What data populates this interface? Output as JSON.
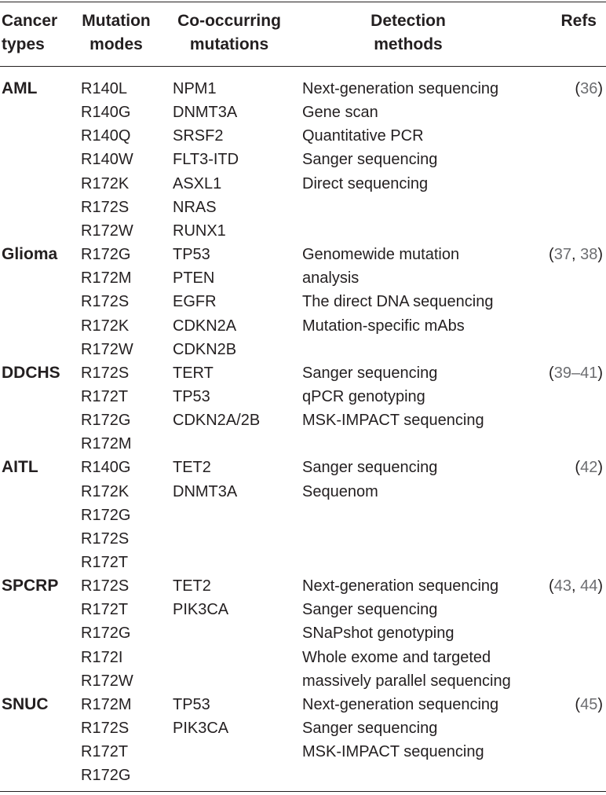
{
  "headers": {
    "cancer_types": [
      "Cancer",
      "types"
    ],
    "mutation_modes": [
      "Mutation",
      "modes"
    ],
    "co_occurring": [
      "Co-occurring",
      "mutations"
    ],
    "detection": [
      "Detection",
      "methods"
    ],
    "refs": "Refs"
  },
  "groups": [
    {
      "type": "AML",
      "modes": [
        "R140L",
        "R140G",
        "R140Q",
        "R140W",
        "R172K",
        "R172S",
        "R172W"
      ],
      "mutations": [
        "NPM1",
        "DNMT3A",
        "SRSF2",
        "FLT3-ITD",
        "ASXL1",
        "NRAS",
        "RUNX1"
      ],
      "methods": [
        "Next-generation sequencing",
        "Gene scan",
        "Quantitative PCR",
        "Sanger sequencing",
        "Direct sequencing"
      ],
      "refs": {
        "open": "(",
        "nums": [
          "36"
        ],
        "seps": [],
        "close": ")"
      }
    },
    {
      "type": "Glioma",
      "modes": [
        "R172G",
        "R172M",
        "R172S",
        "R172K",
        "R172W"
      ],
      "mutations": [
        "TP53",
        "PTEN",
        "EGFR",
        "CDKN2A",
        "CDKN2B"
      ],
      "methods": [
        "Genomewide mutation",
        "analysis",
        "The direct DNA sequencing",
        "Mutation-specific mAbs"
      ],
      "refs": {
        "open": "(",
        "nums": [
          "37",
          "38"
        ],
        "seps": [
          ", "
        ],
        "close": ")"
      }
    },
    {
      "type": "DDCHS",
      "modes": [
        "R172S",
        "R172T",
        "R172G",
        "R172M"
      ],
      "mutations": [
        "TERT",
        "TP53",
        "CDKN2A/2B"
      ],
      "methods": [
        "Sanger sequencing",
        "qPCR genotyping",
        "MSK-IMPACT sequencing"
      ],
      "refs": {
        "open": "(",
        "nums": [
          "39–41"
        ],
        "seps": [],
        "close": ")"
      }
    },
    {
      "type": "AITL",
      "modes": [
        "R140G",
        "R172K",
        "R172G",
        "R172S",
        "R172T"
      ],
      "mutations": [
        "TET2",
        "DNMT3A"
      ],
      "methods": [
        "Sanger sequencing",
        "Sequenom"
      ],
      "refs": {
        "open": "(",
        "nums": [
          "42"
        ],
        "seps": [],
        "close": ")"
      }
    },
    {
      "type": "SPCRP",
      "modes": [
        "R172S",
        "R172T",
        "R172G",
        "R172I",
        "R172W"
      ],
      "mutations": [
        "TET2",
        "PIK3CA"
      ],
      "methods": [
        "Next-generation sequencing",
        "Sanger sequencing",
        "SNaPshot genotyping",
        "Whole exome and targeted",
        "massively parallel sequencing"
      ],
      "refs": {
        "open": "(",
        "nums": [
          "43",
          "44"
        ],
        "seps": [
          ", "
        ],
        "close": ")"
      }
    },
    {
      "type": "SNUC",
      "modes": [
        "R172M",
        "R172S",
        "R172T",
        "R172G"
      ],
      "mutations": [
        "TP53",
        "PIK3CA"
      ],
      "methods": [
        "Next-generation sequencing",
        "Sanger sequencing",
        "MSK-IMPACT sequencing"
      ],
      "refs": {
        "open": "(",
        "nums": [
          "45"
        ],
        "seps": [],
        "close": ")"
      }
    }
  ]
}
